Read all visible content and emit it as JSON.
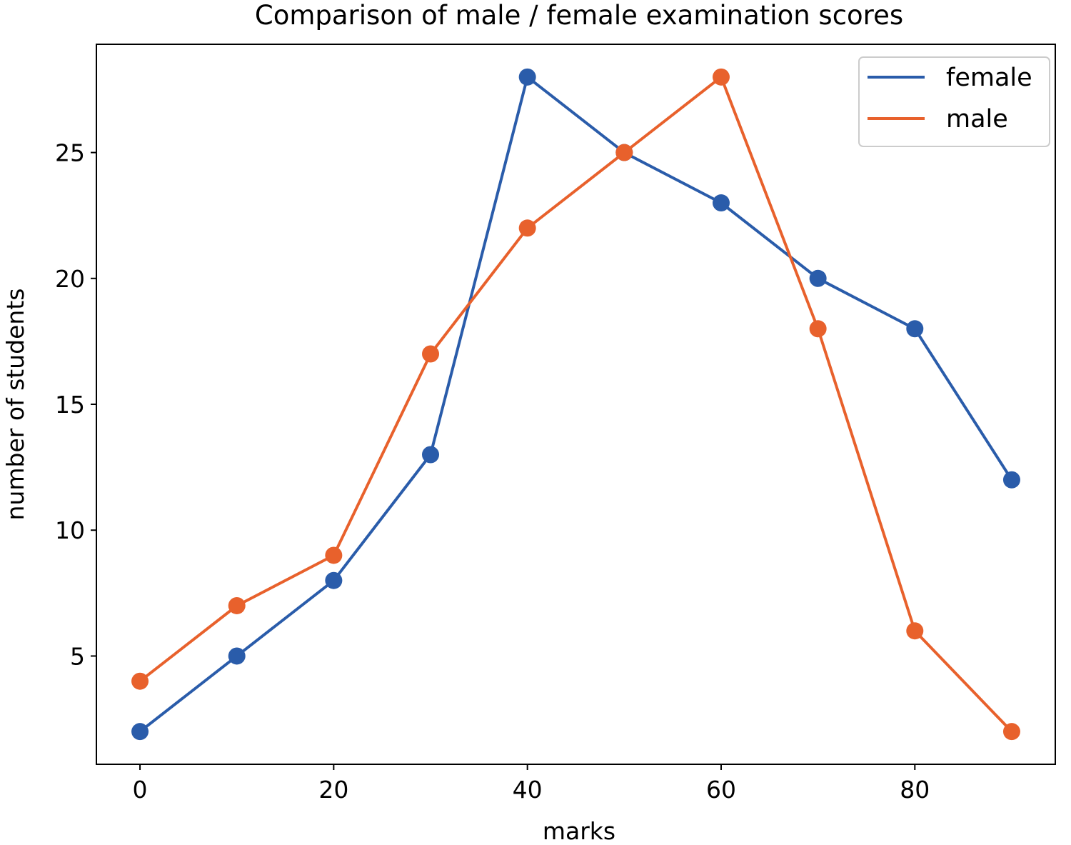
{
  "chart_data": {
    "type": "line",
    "title": "Comparison of male / female examination scores",
    "xlabel": "marks",
    "ylabel": "number of students",
    "x": [
      0,
      10,
      20,
      30,
      40,
      50,
      60,
      70,
      80,
      90
    ],
    "series": [
      {
        "name": "female",
        "color": "#2a5caa",
        "values": [
          2,
          5,
          8,
          13,
          28,
          25,
          23,
          20,
          18,
          12
        ]
      },
      {
        "name": "male",
        "color": "#e8612c",
        "values": [
          4,
          7,
          9,
          17,
          22,
          25,
          28,
          18,
          6,
          2
        ]
      }
    ],
    "xticks": [
      0,
      20,
      40,
      60,
      80
    ],
    "yticks": [
      5,
      10,
      15,
      20,
      25
    ],
    "xlim": [
      -4.5,
      94.5
    ],
    "ylim": [
      0.7,
      29.3
    ],
    "grid": false,
    "legend_position": "top-right",
    "marker": "circle"
  }
}
